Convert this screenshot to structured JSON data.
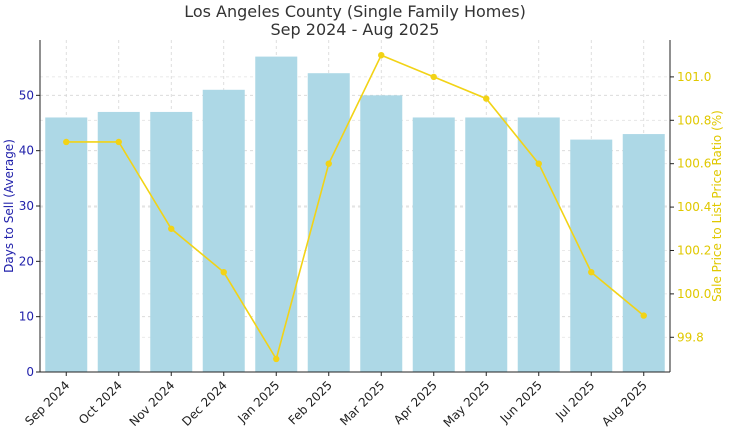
{
  "chart_data": {
    "type": "bar",
    "title": "Los Angeles County (Single Family Homes)",
    "subtitle": "Sep 2024 - Aug 2025",
    "categories": [
      "Sep 2024",
      "Oct 2024",
      "Nov 2024",
      "Dec 2024",
      "Jan 2025",
      "Feb 2025",
      "Mar 2025",
      "Apr 2025",
      "May 2025",
      "Jun 2025",
      "Jul 2025",
      "Aug 2025"
    ],
    "series": [
      {
        "name": "Days to Sell (Average)",
        "type": "bar",
        "axis": "left",
        "color": "#add8e6",
        "values": [
          46,
          47,
          47,
          51,
          57,
          54,
          50,
          46,
          46,
          46,
          42,
          43
        ]
      },
      {
        "name": "Sale Price to List Price Ratio (%)",
        "type": "line",
        "axis": "right",
        "color": "#f2d316",
        "values": [
          100.7,
          100.7,
          100.3,
          100.1,
          99.7,
          100.6,
          101.1,
          101.0,
          100.9,
          100.6,
          100.1,
          99.9
        ]
      }
    ],
    "ylabel": "Days to Sell (Average)",
    "y2label": "Sale Price to List Price Ratio (%)",
    "ylim": [
      0,
      60
    ],
    "yticks": [
      "0",
      "10",
      "20",
      "30",
      "40",
      "50"
    ],
    "y2lim": [
      99.64,
      101.17
    ],
    "y2ticks": [
      "99.8",
      "100.0",
      "100.2",
      "100.4",
      "100.6",
      "100.8",
      "101.0"
    ],
    "ylabel_color": "#1f1faa",
    "y2label_color": "#e0c800",
    "grid": true
  }
}
